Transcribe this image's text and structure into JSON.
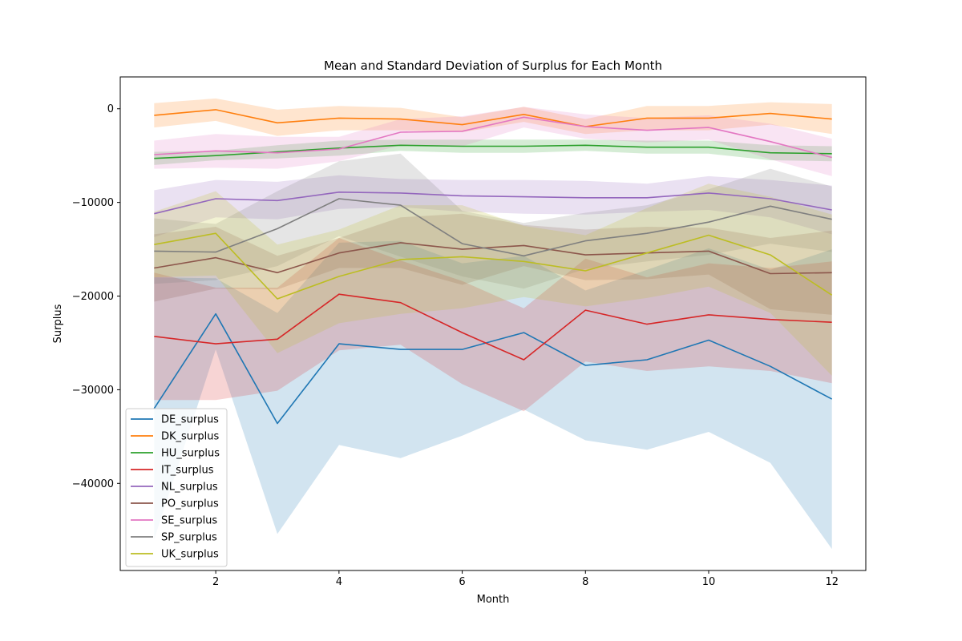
{
  "chart_data": {
    "type": "line",
    "title": "Mean and Standard Deviation of Surplus for Each Month",
    "xlabel": "Month",
    "ylabel": "Surplus",
    "xlim": [
      0.45,
      12.55
    ],
    "ylim": [
      -49300,
      3400
    ],
    "xticks": [
      2,
      4,
      6,
      8,
      10,
      12
    ],
    "yticks": [
      0,
      -10000,
      -20000,
      -30000,
      -40000
    ],
    "grid": false,
    "legend_position": "lower-left",
    "x": [
      1,
      2,
      3,
      4,
      5,
      6,
      7,
      8,
      9,
      10,
      11,
      12
    ],
    "series": [
      {
        "name": "DE_surplus",
        "color": "#1f77b4",
        "mean": [
          -32000,
          -21900,
          -33600,
          -25100,
          -25700,
          -25700,
          -23900,
          -27400,
          -26800,
          -24700,
          -27500,
          -31000
        ],
        "std": [
          14000,
          3800,
          11800,
          10800,
          11600,
          9200,
          8200,
          8000,
          9600,
          9800,
          10300,
          16000
        ]
      },
      {
        "name": "DK_surplus",
        "color": "#ff7f0e",
        "mean": [
          -700,
          -100,
          -1500,
          -1000,
          -1100,
          -1700,
          -600,
          -1900,
          -1000,
          -1000,
          -500,
          -1100
        ],
        "std": [
          1300,
          1200,
          1400,
          1300,
          1200,
          800,
          800,
          800,
          1300,
          1300,
          1200,
          1600
        ]
      },
      {
        "name": "HU_surplus",
        "color": "#2ca02c",
        "mean": [
          -5300,
          -5000,
          -4600,
          -4200,
          -3900,
          -4000,
          -4000,
          -3900,
          -4100,
          -4100,
          -4700,
          -4800
        ],
        "std": [
          700,
          500,
          700,
          800,
          600,
          700,
          700,
          600,
          700,
          700,
          800,
          800
        ]
      },
      {
        "name": "IT_surplus",
        "color": "#d62728",
        "mean": [
          -24300,
          -25100,
          -24600,
          -19800,
          -20700,
          -23900,
          -26800,
          -21500,
          -23000,
          -22000,
          -22500,
          -22800
        ],
        "std": [
          6800,
          6000,
          5500,
          6000,
          4500,
          5500,
          5500,
          5500,
          5000,
          5500,
          5500,
          6500
        ]
      },
      {
        "name": "NL_surplus",
        "color": "#9467bd",
        "mean": [
          -11200,
          -9600,
          -9800,
          -8900,
          -9000,
          -9300,
          -9400,
          -9500,
          -9500,
          -9000,
          -9600,
          -10800
        ],
        "std": [
          2500,
          2000,
          2000,
          1800,
          1500,
          1700,
          1800,
          1800,
          1500,
          1800,
          2000,
          2600
        ]
      },
      {
        "name": "PO_surplus",
        "color": "#8c564b",
        "mean": [
          -17000,
          -15900,
          -17500,
          -15400,
          -14300,
          -15000,
          -14600,
          -15600,
          -15400,
          -15200,
          -17600,
          -17500
        ],
        "std": [
          3600,
          3300,
          1800,
          1600,
          2700,
          3800,
          2200,
          2700,
          2800,
          2500,
          3800,
          4500
        ]
      },
      {
        "name": "SE_surplus",
        "color": "#e377c2",
        "mean": [
          -4900,
          -4500,
          -4700,
          -4300,
          -2500,
          -2400,
          -900,
          -1900,
          -2300,
          -2000,
          -3500,
          -5200
        ],
        "std": [
          1500,
          1800,
          1700,
          1300,
          1400,
          1600,
          1100,
          1300,
          1300,
          1300,
          1900,
          2000
        ]
      },
      {
        "name": "SP_surplus",
        "color": "#7f7f7f",
        "mean": [
          -15200,
          -15300,
          -12800,
          -9600,
          -10300,
          -14400,
          -15700,
          -14100,
          -13300,
          -12100,
          -10400,
          -11800
        ],
        "std": [
          3500,
          3000,
          4000,
          4000,
          5500,
          3500,
          3500,
          3000,
          3000,
          3500,
          4000,
          3500
        ]
      },
      {
        "name": "UK_surplus",
        "color": "#bcbd22",
        "mean": [
          -14500,
          -13300,
          -20300,
          -17900,
          -16100,
          -15800,
          -16300,
          -17300,
          -15400,
          -13500,
          -15600,
          -19900
        ],
        "std": [
          3500,
          4500,
          5800,
          5000,
          5800,
          5500,
          3800,
          3800,
          4800,
          5500,
          6200,
          8600
        ]
      }
    ]
  }
}
